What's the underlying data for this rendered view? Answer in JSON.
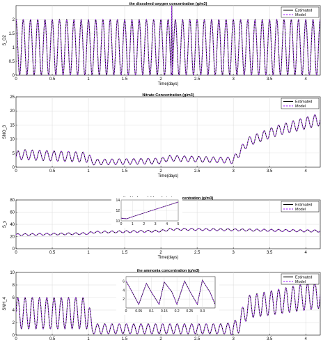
{
  "colors": {
    "estimated": "#000000",
    "model": "#b040ff",
    "axis": "#000000",
    "grid": "#d9d9d9"
  },
  "chart_data": [
    {
      "type": "line",
      "title": "the dissolved oxygen concentration (g/m3)",
      "xlabel": "Time(days)",
      "ylabel": "S_O2",
      "xlim": [
        0,
        4.2
      ],
      "ylim": [
        0,
        2.5
      ],
      "xticks": [
        0,
        0.5,
        1,
        1.5,
        2,
        2.5,
        3,
        3.5,
        4
      ],
      "xtick_labels": [
        "0",
        "0.5",
        "1",
        "1.5",
        "2",
        "2.5",
        "3",
        "3.5",
        "4"
      ],
      "yticks": [
        0,
        0.5,
        1,
        1.5,
        2
      ],
      "ytick_labels": [
        "0",
        "0.5",
        "1",
        "1.5",
        "2"
      ],
      "grid": true,
      "legend": "top-right",
      "series": [
        {
          "name": "Estimated",
          "style": "solid"
        },
        {
          "name": "Model",
          "style": "dashed"
        }
      ],
      "signal": {
        "kind": "oscillation",
        "period_days": 0.1,
        "min": 0,
        "max": 2.0,
        "spike": {
          "x": 2.15,
          "y": 2.7
        }
      }
    },
    {
      "type": "line",
      "title": "Nitrate Concentration (g/m3)",
      "xlabel": "Time(days)",
      "ylabel": "SNO_3",
      "xlim": [
        0,
        4.2
      ],
      "ylim": [
        0,
        25
      ],
      "xticks": [
        0,
        0.5,
        1,
        1.5,
        2,
        2.5,
        3,
        3.5,
        4
      ],
      "xtick_labels": [
        "0",
        "0.5",
        "1",
        "1.5",
        "2",
        "2.5",
        "3",
        "3.5",
        "4"
      ],
      "yticks": [
        0,
        5,
        10,
        15,
        20,
        25
      ],
      "ytick_labels": [
        "0",
        "5",
        "10",
        "15",
        "20",
        "25"
      ],
      "grid": true,
      "legend": "top-right",
      "series": [
        {
          "name": "Estimated",
          "style": "solid"
        },
        {
          "name": "Model",
          "style": "dashed"
        }
      ],
      "signal": {
        "kind": "oscillation",
        "period_days": 0.1,
        "centerline": [
          [
            0,
            3.5
          ],
          [
            0.05,
            4.5
          ],
          [
            1.0,
            3.5
          ],
          [
            1.05,
            1.8
          ],
          [
            2.0,
            2.2
          ],
          [
            2.1,
            3.2
          ],
          [
            2.9,
            2.5
          ],
          [
            3.0,
            2.5
          ],
          [
            3.2,
            9
          ],
          [
            3.6,
            13
          ],
          [
            4.2,
            17
          ]
        ],
        "amplitude": [
          [
            0,
            1.8
          ],
          [
            1.0,
            1.8
          ],
          [
            1.05,
            1.0
          ],
          [
            2.9,
            1.0
          ],
          [
            3.1,
            1.5
          ],
          [
            4.2,
            2.2
          ]
        ]
      }
    },
    {
      "type": "line",
      "title": "the biodegradable substrate concentration (g/m3)",
      "xlabel": "Time(days)",
      "ylabel": "S_s",
      "xlim": [
        0,
        4.2
      ],
      "ylim": [
        0,
        80
      ],
      "xticks": [
        0,
        0.5,
        1,
        1.5,
        2,
        2.5,
        3,
        3.5,
        4
      ],
      "xtick_labels": [
        "0",
        "0.5",
        "1",
        "1.5",
        "2",
        "2.5",
        "3",
        "3.5",
        "4"
      ],
      "yticks": [
        0,
        20,
        40,
        60,
        80
      ],
      "ytick_labels": [
        "0",
        "20",
        "40",
        "60",
        "80"
      ],
      "grid": true,
      "legend": "top-right",
      "series": [
        {
          "name": "Estimated",
          "style": "solid"
        },
        {
          "name": "Model",
          "style": "dashed"
        }
      ],
      "signal": {
        "kind": "oscillation",
        "period_days": 0.1,
        "centerline": [
          [
            0,
            23
          ],
          [
            1.0,
            25
          ],
          [
            1.05,
            27
          ],
          [
            2.0,
            29
          ],
          [
            2.15,
            32
          ],
          [
            3.0,
            31
          ],
          [
            4.2,
            29
          ]
        ],
        "amplitude": [
          [
            0,
            1.5
          ],
          [
            4.2,
            1.8
          ]
        ]
      },
      "inset": {
        "xlim": [
          0,
          5
        ],
        "ylim": [
          10,
          14
        ],
        "xticks": [
          0,
          1,
          2,
          3,
          4,
          5
        ],
        "xtick_labels": [
          "0",
          "1",
          "2",
          "3",
          "4",
          "5"
        ],
        "yticks": [
          10,
          12,
          14
        ],
        "ytick_labels": [
          "10",
          "12",
          "14"
        ],
        "x": [
          0,
          0.5,
          1,
          2,
          3,
          4,
          5
        ],
        "y": [
          10.5,
          10.4,
          10.8,
          11.5,
          12.2,
          12.9,
          13.6
        ]
      }
    },
    {
      "type": "line",
      "title": "the ammonia concentration (g/m3)",
      "xlabel": "Time(days)",
      "ylabel": "SNH_4",
      "xlim": [
        0,
        4.2
      ],
      "ylim": [
        0,
        10
      ],
      "xticks": [
        0,
        0.5,
        1,
        1.5,
        2,
        2.5,
        3,
        3.5,
        4
      ],
      "xtick_labels": [
        "0",
        "0.5",
        "1",
        "1.5",
        "2",
        "2.5",
        "3",
        "3.5",
        "4"
      ],
      "yticks": [
        0,
        2,
        4,
        6,
        8,
        10
      ],
      "ytick_labels": [
        "0",
        "2",
        "4",
        "6",
        "8",
        "10"
      ],
      "grid": true,
      "legend": "top-right",
      "series": [
        {
          "name": "Estimated",
          "style": "solid"
        },
        {
          "name": "Model",
          "style": "dashed"
        }
      ],
      "signal": {
        "kind": "oscillation",
        "period_days": 0.1,
        "centerline": [
          [
            0,
            3.5
          ],
          [
            1.0,
            3.5
          ],
          [
            1.05,
            1.0
          ],
          [
            2.9,
            1.0
          ],
          [
            3.05,
            1.2
          ],
          [
            3.2,
            4.5
          ],
          [
            4.2,
            6.5
          ]
        ],
        "amplitude": [
          [
            0,
            2.5
          ],
          [
            1.0,
            2.5
          ],
          [
            1.05,
            0.8
          ],
          [
            2.9,
            0.8
          ],
          [
            3.2,
            1.8
          ],
          [
            4.2,
            2.2
          ]
        ]
      },
      "inset": {
        "xlim": [
          0,
          0.35
        ],
        "ylim": [
          0,
          7
        ],
        "xticks": [
          0,
          0.05,
          0.1,
          0.15,
          0.2,
          0.25,
          0.3
        ],
        "xtick_labels": [
          "0",
          "0.05",
          "0.1",
          "0.15",
          "0.2",
          "0.25",
          "0.3"
        ],
        "yticks": [
          2,
          4,
          6
        ],
        "ytick_labels": [
          "2",
          "4",
          "6"
        ],
        "x": [
          0,
          0.02,
          0.05,
          0.08,
          0.1,
          0.13,
          0.15,
          0.18,
          0.2,
          0.23,
          0.25,
          0.28,
          0.3,
          0.33,
          0.35
        ],
        "y": [
          6,
          4,
          0.8,
          5.5,
          3.5,
          0.8,
          5.8,
          3.6,
          0.8,
          6.0,
          3.8,
          0.8,
          6.2,
          3.5,
          0.8
        ]
      }
    }
  ]
}
